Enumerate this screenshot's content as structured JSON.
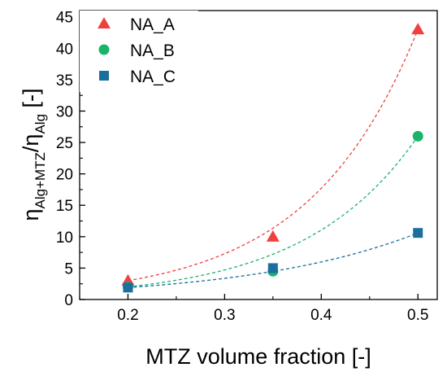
{
  "chart_data": {
    "type": "scatter",
    "xlabel": "MTZ volume fraction [-]",
    "ylabel": {
      "eta": "η",
      "sub1": "Alg+MTZ",
      "slash": "/",
      "sub2": "Alg",
      "unit": " [-]"
    },
    "xlim": [
      0.15,
      0.52
    ],
    "ylim": [
      0,
      46
    ],
    "x_ticks": [
      0.2,
      0.3,
      0.4,
      0.5
    ],
    "x_tick_labels": [
      "0.2",
      "0.3",
      "0.4",
      "0.5"
    ],
    "y_ticks": [
      0,
      5,
      10,
      15,
      20,
      25,
      30,
      35,
      40,
      45
    ],
    "y_tick_labels": [
      "0",
      "5",
      "10",
      "15",
      "20",
      "25",
      "30",
      "35",
      "40",
      "45"
    ],
    "grid": false,
    "legend_position": "top-left",
    "series": [
      {
        "name": "NA_A",
        "marker": "triangle",
        "color": "#f0413e",
        "x": [
          0.2,
          0.35,
          0.5
        ],
        "y": [
          3.0,
          10.0,
          43.0
        ],
        "fit": "exponential"
      },
      {
        "name": "NA_B",
        "marker": "circle",
        "color": "#19b46a",
        "x": [
          0.2,
          0.35,
          0.5
        ],
        "y": [
          2.0,
          4.5,
          26.0
        ],
        "fit": "exponential"
      },
      {
        "name": "NA_C",
        "marker": "square",
        "color": "#1a6f9e",
        "x": [
          0.2,
          0.35,
          0.5
        ],
        "y": [
          1.9,
          5.0,
          10.6
        ],
        "fit": "exponential"
      }
    ]
  }
}
